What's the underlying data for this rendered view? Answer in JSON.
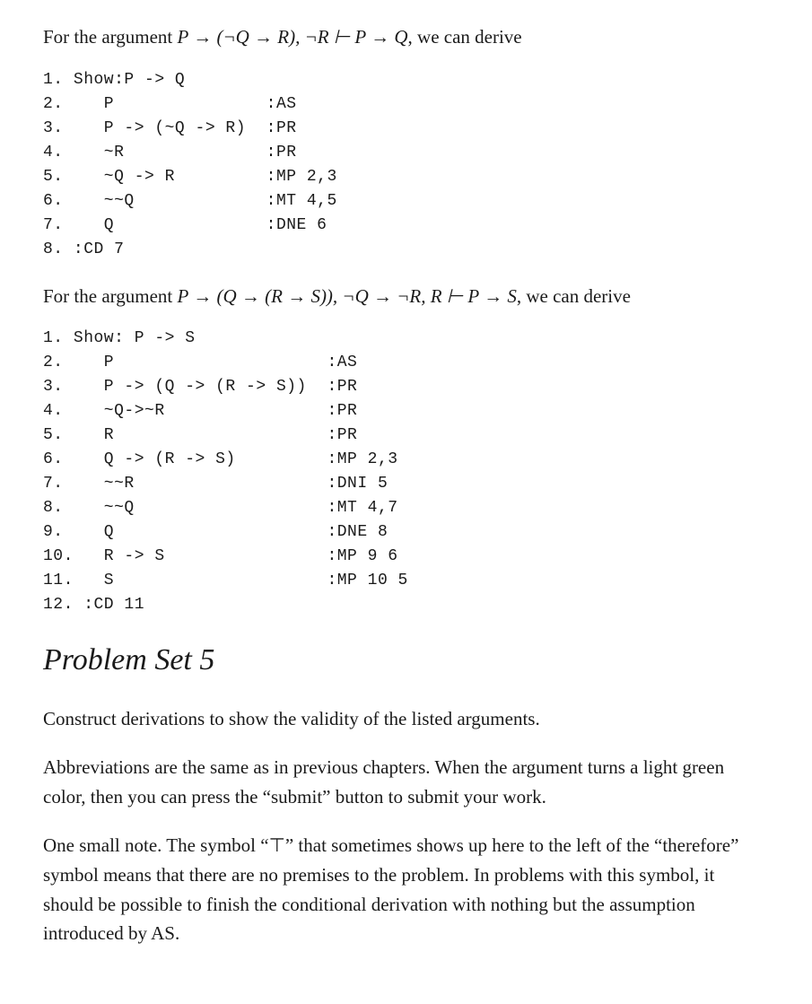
{
  "intro1": {
    "prefix": "For the argument ",
    "formula_parts": [
      "P → (¬Q → R), ¬R ⊢ P → Q"
    ],
    "suffix": ", we can derive"
  },
  "deriv1": "1. Show:P -> Q\n2.    P               :AS\n3.    P -> (~Q -> R)  :PR\n4.    ~R              :PR\n5.    ~Q -> R         :MP 2,3\n6.    ~~Q             :MT 4,5\n7.    Q               :DNE 6\n8. :CD 7",
  "intro2": {
    "prefix": "For the argument ",
    "formula_parts": [
      "P → (Q → (R → S)), ¬Q → ¬R, R ⊢ P → S"
    ],
    "suffix": ", we can derive"
  },
  "deriv2": "1. Show: P -> S\n2.    P                     :AS\n3.    P -> (Q -> (R -> S))  :PR\n4.    ~Q->~R                :PR\n5.    R                     :PR\n6.    Q -> (R -> S)         :MP 2,3\n7.    ~~R                   :DNI 5\n8.    ~~Q                   :MT 4,7\n9.    Q                     :DNE 8\n10.   R -> S                :MP 9 6\n11.   S                     :MP 10 5\n12. :CD 11",
  "heading": "Problem Set 5",
  "para1": "Construct derivations to show the validity of the listed arguments.",
  "para2": "Abbreviations are the same as in previous chapters. When the argument turns a light green color, then you can press the “submit” button to submit your work.",
  "para3": "One small note. The symbol “⊤” that sometimes shows up here to the left of the “therefore” symbol means that there are no premises to the problem. In problems with this symbol, it should be possible to finish the conditional derivation with nothing but the assumption introduced by AS."
}
